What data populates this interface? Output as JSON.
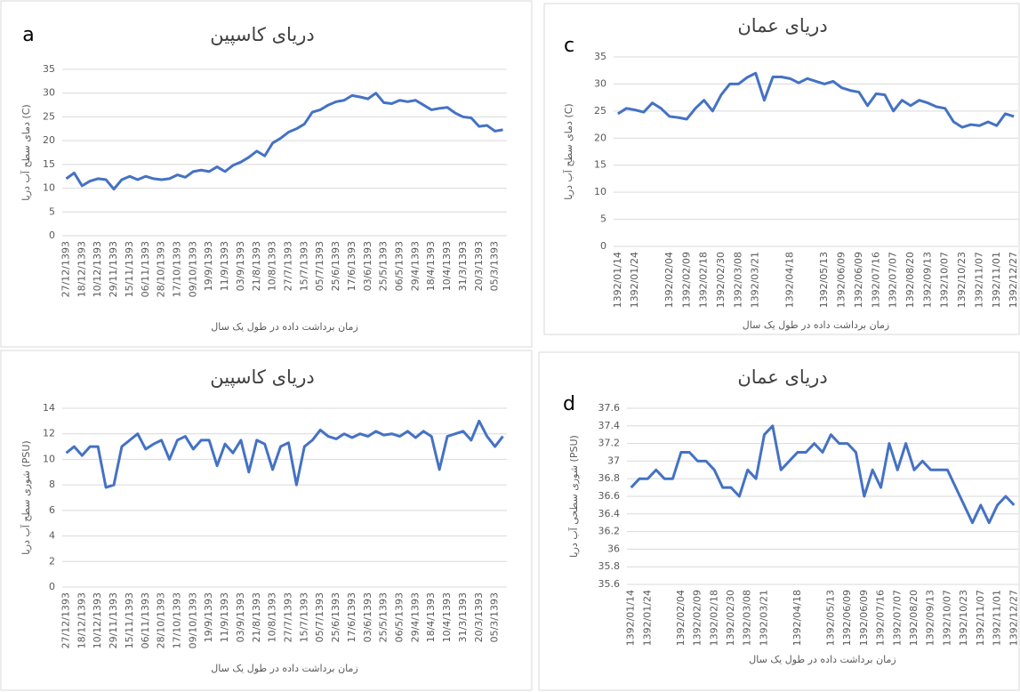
{
  "chart_data": [
    {
      "type": "line",
      "title": "دریای کاسپین",
      "panel_label": "a",
      "y_label": "دمای سطح آب دریا (C)",
      "x_label": "زمان برداشت داده در طول یک سال",
      "categories": [
        "27/12/1393",
        null,
        "18/12/1393",
        null,
        "10/12/1393",
        null,
        "29/11/1393",
        null,
        "15/11/1393",
        null,
        "06/11/1393",
        null,
        "28/10/1393",
        null,
        "17/10/1393",
        null,
        "09/10/1393",
        null,
        "19/9/1393",
        null,
        "11/9/1393",
        null,
        "03/9/1393",
        null,
        "21/8/1393",
        null,
        "10/8/1393",
        null,
        "27/7/1393",
        null,
        "15/7/1393",
        null,
        "05/7/1393",
        null,
        "25/6/1393",
        null,
        "17/6/1393",
        null,
        "03/6/1393",
        null,
        "25/5/1393",
        null,
        "06/5/1393",
        null,
        "29/4/1393",
        null,
        "18/4/1393",
        null,
        "10/4/1393",
        null,
        "31/3/1393",
        null,
        "20/3/1393",
        null,
        "05/3/1393",
        null
      ],
      "values": [
        12,
        13.2,
        10.5,
        11.5,
        12,
        11.8,
        9.8,
        11.8,
        12.5,
        11.8,
        12.5,
        12,
        11.8,
        12,
        12.8,
        12.3,
        13.5,
        13.8,
        13.5,
        14.5,
        13.5,
        14.8,
        15.5,
        16.5,
        17.8,
        16.8,
        19.5,
        20.5,
        21.8,
        22.5,
        23.5,
        26,
        26.5,
        27.5,
        28.2,
        28.5,
        29.5,
        29.2,
        28.8,
        30,
        28,
        27.8,
        28.5,
        28.2,
        28.5,
        27.5,
        26.5,
        26.8,
        27,
        25.8,
        25,
        24.8,
        23,
        23.2,
        22,
        22.3
      ],
      "color": "#4472c4",
      "ylim": [
        0,
        35
      ],
      "yticks": [
        0,
        5,
        10,
        15,
        20,
        25,
        30,
        35
      ],
      "grid": true
    },
    {
      "type": "line",
      "title": "دریای عمان",
      "panel_label": "c",
      "y_label": "دمای سطح آب دریا (C)",
      "x_label": "زمان برداشت داده در طول یک سال",
      "categories": [
        "1392/01/14",
        null,
        "1392/01/24",
        null,
        null,
        null,
        "1392/02/04",
        null,
        "1392/02/09",
        null,
        "1392/02/18",
        null,
        "1392/02/30",
        null,
        "1392/03/08",
        null,
        "1392/03/21",
        null,
        null,
        null,
        "1392/04/18",
        null,
        null,
        null,
        "1392/05/13",
        null,
        "1392/06/09",
        null,
        "1392/06/09",
        null,
        "1392/07/16",
        null,
        "1392/07/07",
        null,
        "1392/08/20",
        null,
        "1392/09/13",
        null,
        "1392/10/07",
        null,
        "1392/10/23",
        null,
        "1392/11/07",
        null,
        "1392/11/01",
        null,
        "1392/12/27"
      ],
      "values": [
        24.5,
        25.5,
        25.2,
        24.8,
        26.5,
        25.5,
        24,
        23.8,
        23.5,
        25.5,
        27,
        25,
        28,
        30,
        30,
        31.2,
        32,
        27,
        31.3,
        31.3,
        31,
        30.2,
        31,
        30.5,
        30,
        30.5,
        29.3,
        28.8,
        28.5,
        26,
        28.2,
        28,
        25,
        27,
        26,
        27,
        26.5,
        25.8,
        25.5,
        23,
        22,
        22.5,
        22.3,
        23,
        22.3,
        24.5,
        24
      ],
      "color": "#4472c4",
      "ylim": [
        0,
        35
      ],
      "yticks": [
        0,
        5,
        10,
        15,
        20,
        25,
        30,
        35
      ],
      "grid": true
    },
    {
      "type": "line",
      "title": "دریای کاسپین",
      "y_label": "شوری سطح آب دریا (PSU)",
      "x_label": "زمان برداشت داده در طول یک سال",
      "categories": [
        "27/12/1393",
        null,
        "18/12/1393",
        null,
        "10/12/1393",
        null,
        "29/11/1393",
        null,
        "15/11/1393",
        null,
        "06/11/1393",
        null,
        "28/10/1393",
        null,
        "17/10/1393",
        null,
        "09/10/1393",
        null,
        "19/9/1393",
        null,
        "11/9/1393",
        null,
        "03/9/1393",
        null,
        "21/8/1393",
        null,
        "10/8/1393",
        null,
        "27/7/1393",
        null,
        "15/7/1393",
        null,
        "05/7/1393",
        null,
        "25/6/1393",
        null,
        "17/6/1393",
        null,
        "03/6/1393",
        null,
        "25/5/1393",
        null,
        "06/5/1393",
        null,
        "29/4/1393",
        null,
        "18/4/1393",
        null,
        "10/4/1393",
        null,
        "31/3/1393",
        null,
        "20/3/1393",
        null,
        "05/3/1393",
        null
      ],
      "values": [
        10.5,
        11,
        10.3,
        11,
        11,
        7.8,
        8,
        11,
        11.5,
        12,
        10.8,
        11.2,
        11.5,
        10,
        11.5,
        11.8,
        10.8,
        11.5,
        11.5,
        9.5,
        11.2,
        10.5,
        11.5,
        9,
        11.5,
        11.2,
        9.2,
        11,
        11.3,
        8,
        11,
        11.5,
        12.3,
        11.8,
        11.6,
        12,
        11.7,
        12,
        11.8,
        12.2,
        11.9,
        12,
        11.8,
        12.2,
        11.7,
        12.2,
        11.8,
        9.2,
        11.8,
        12,
        12.2,
        11.5,
        13,
        11.8,
        11,
        11.8
      ],
      "color": "#4472c4",
      "ylim": [
        0,
        14
      ],
      "yticks": [
        0,
        2,
        4,
        6,
        8,
        10,
        12,
        14
      ],
      "grid": true
    },
    {
      "type": "line",
      "title": "دریای عمان",
      "panel_label": "d",
      "y_label": "شوری سطحی آب دریا (PSU)",
      "x_label": "زمان برداشت داده در طول یک سال",
      "categories": [
        "1392/01/14",
        null,
        "1392/01/24",
        null,
        null,
        null,
        "1392/02/04",
        null,
        "1392/02/09",
        null,
        "1392/02/18",
        null,
        "1392/02/30",
        null,
        "1392/03/08",
        null,
        "1392/03/21",
        null,
        null,
        null,
        "1392/04/18",
        null,
        null,
        null,
        "1392/05/13",
        null,
        "1392/06/09",
        null,
        "1392/06/09",
        null,
        "1392/07/16",
        null,
        "1392/07/07",
        null,
        "1392/08/20",
        null,
        "1392/09/13",
        null,
        "1392/10/07",
        null,
        "1392/10/23",
        null,
        "1392/11/07",
        null,
        "1392/11/01",
        null,
        "1392/12/27"
      ],
      "values": [
        36.7,
        36.8,
        36.8,
        36.9,
        36.8,
        36.8,
        37.1,
        37.1,
        37,
        37,
        36.9,
        36.7,
        36.7,
        36.6,
        36.9,
        36.8,
        37.3,
        37.4,
        36.9,
        37,
        37.1,
        37.1,
        37.2,
        37.1,
        37.3,
        37.2,
        37.2,
        37.1,
        36.6,
        36.9,
        36.7,
        37.2,
        36.9,
        37.2,
        36.9,
        37,
        36.9,
        36.9,
        36.9,
        36.7,
        36.5,
        36.3,
        36.5,
        36.3,
        36.5,
        36.6,
        36.5
      ],
      "color": "#4472c4",
      "ylim": [
        35.6,
        37.6
      ],
      "yticks": [
        35.6,
        35.8,
        36,
        36.2,
        36.4,
        36.6,
        36.8,
        37,
        37.2,
        37.4,
        37.6
      ],
      "grid": true
    }
  ]
}
